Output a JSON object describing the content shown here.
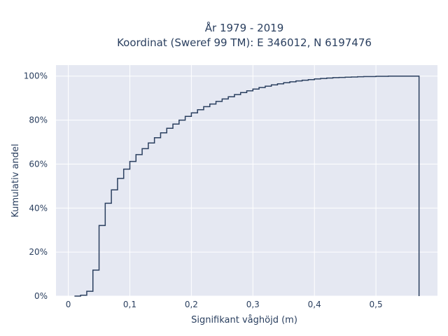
{
  "chart_data": {
    "type": "line",
    "subtype": "ecdf-step",
    "title_line1": "År 1979 - 2019",
    "title_line2": "Koordinat (Sweref 99 TM): E 346012, N 6197476",
    "xlabel": "Signifikant våghöjd (m)",
    "ylabel": "Kumulativ andel",
    "xlim": [
      -0.02,
      0.6
    ],
    "ylim": [
      0,
      1.05
    ],
    "x_ticks": [
      0,
      0.1,
      0.2,
      0.3,
      0.4,
      0.5
    ],
    "x_tick_labels": [
      "0",
      "0,1",
      "0,2",
      "0,3",
      "0,4",
      "0,5"
    ],
    "y_ticks": [
      0,
      0.2,
      0.4,
      0.6,
      0.8,
      1.0
    ],
    "y_tick_labels": [
      "0%",
      "20%",
      "40%",
      "60%",
      "80%",
      "100%"
    ],
    "grid": true,
    "colors": {
      "plot_bg": "#e5e8f2",
      "grid": "#ffffff",
      "line": "#2a3f5f",
      "text": "#2a3f5f"
    },
    "x": [
      0.01,
      0.02,
      0.03,
      0.04,
      0.05,
      0.06,
      0.07,
      0.08,
      0.09,
      0.1,
      0.11,
      0.12,
      0.13,
      0.14,
      0.15,
      0.16,
      0.17,
      0.18,
      0.19,
      0.2,
      0.21,
      0.22,
      0.23,
      0.24,
      0.25,
      0.26,
      0.27,
      0.28,
      0.29,
      0.3,
      0.31,
      0.32,
      0.33,
      0.34,
      0.35,
      0.36,
      0.37,
      0.38,
      0.39,
      0.4,
      0.41,
      0.42,
      0.43,
      0.44,
      0.45,
      0.46,
      0.47,
      0.48,
      0.49,
      0.5,
      0.51,
      0.52,
      0.53,
      0.54,
      0.55,
      0.57
    ],
    "y": [
      0.0,
      0.004,
      0.022,
      0.118,
      0.321,
      0.422,
      0.483,
      0.535,
      0.577,
      0.612,
      0.643,
      0.67,
      0.696,
      0.72,
      0.742,
      0.763,
      0.782,
      0.8,
      0.817,
      0.833,
      0.847,
      0.861,
      0.873,
      0.885,
      0.896,
      0.906,
      0.916,
      0.925,
      0.933,
      0.941,
      0.948,
      0.954,
      0.96,
      0.965,
      0.97,
      0.974,
      0.978,
      0.981,
      0.984,
      0.987,
      0.989,
      0.991,
      0.993,
      0.994,
      0.995,
      0.996,
      0.997,
      0.998,
      0.998,
      0.999,
      0.999,
      1.0,
      1.0,
      1.0,
      1.0,
      1.0
    ]
  }
}
